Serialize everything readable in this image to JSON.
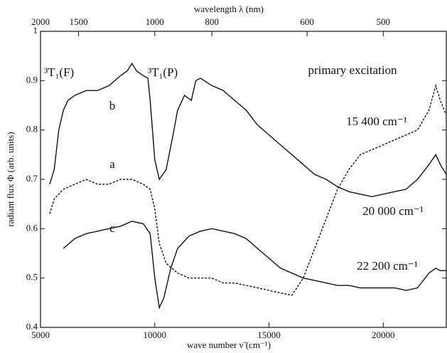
{
  "chart_data": {
    "type": "line",
    "x_label": "wave number ν̃ (cm⁻¹)",
    "y_label": "radiant flux Φ (arb. units)",
    "x2_label": "wavelength λ (nm)",
    "xlim": [
      5000,
      22760
    ],
    "ylim": [
      0.4,
      1
    ],
    "xticks": [
      5000,
      10000,
      15000,
      20000
    ],
    "yticks": [
      0.4,
      0.5,
      0.6,
      0.7,
      0.8,
      0.9,
      1
    ],
    "x2ticks": [
      2000,
      1500,
      1000,
      800,
      600,
      500
    ],
    "x2scale": "reciprocal",
    "annotations": [
      "³T₁(F)",
      "³T₁(P)",
      "primary excitation"
    ],
    "series": [
      {
        "name": "b",
        "excitation": "15 400 cm⁻¹",
        "color": "#111111",
        "style": "solid",
        "x": [
          5400,
          5600,
          5800,
          6000,
          6200,
          6500,
          7000,
          7500,
          8000,
          8500,
          8800,
          9000,
          9200,
          9500,
          9700,
          9800,
          10000,
          10200,
          10500,
          10800,
          11000,
          11300,
          11600,
          11800,
          12000,
          12500,
          13000,
          13500,
          14000,
          14500,
          15000,
          15500,
          16000,
          16500,
          17000,
          17500,
          18000,
          18500,
          19000,
          19500,
          20000,
          20500,
          21000,
          21500,
          22000,
          22300,
          22500,
          22760
        ],
        "values": [
          0.69,
          0.72,
          0.8,
          0.84,
          0.86,
          0.87,
          0.88,
          0.88,
          0.89,
          0.91,
          0.92,
          0.935,
          0.92,
          0.91,
          0.905,
          0.86,
          0.74,
          0.7,
          0.72,
          0.79,
          0.84,
          0.87,
          0.86,
          0.9,
          0.905,
          0.89,
          0.88,
          0.86,
          0.84,
          0.81,
          0.79,
          0.77,
          0.75,
          0.73,
          0.71,
          0.7,
          0.685,
          0.675,
          0.67,
          0.665,
          0.67,
          0.675,
          0.68,
          0.7,
          0.73,
          0.75,
          0.73,
          0.71
        ]
      },
      {
        "name": "a",
        "excitation": "20 000 cm⁻¹",
        "color": "#111111",
        "style": "dotted",
        "x": [
          5400,
          5600,
          5800,
          6000,
          6500,
          7000,
          7500,
          8000,
          8500,
          9000,
          9500,
          9800,
          10000,
          10200,
          10500,
          11000,
          11500,
          12000,
          12500,
          13000,
          13500,
          14000,
          14500,
          15000,
          15500,
          16000,
          16500,
          17000,
          17500,
          18000,
          18500,
          19000,
          19500,
          20000,
          20500,
          21000,
          21500,
          22000,
          22300,
          22500,
          22760
        ],
        "values": [
          0.63,
          0.66,
          0.67,
          0.68,
          0.69,
          0.7,
          0.69,
          0.69,
          0.7,
          0.7,
          0.69,
          0.68,
          0.64,
          0.57,
          0.53,
          0.51,
          0.5,
          0.5,
          0.5,
          0.49,
          0.49,
          0.485,
          0.48,
          0.475,
          0.47,
          0.465,
          0.5,
          0.56,
          0.62,
          0.68,
          0.72,
          0.75,
          0.76,
          0.77,
          0.78,
          0.79,
          0.8,
          0.84,
          0.89,
          0.86,
          0.83
        ]
      },
      {
        "name": "c",
        "excitation": "22 200 cm⁻¹",
        "color": "#111111",
        "style": "solid",
        "x": [
          6000,
          6500,
          7000,
          7500,
          8000,
          8500,
          9000,
          9500,
          9800,
          10000,
          10200,
          10400,
          10700,
          11000,
          11500,
          12000,
          12500,
          13000,
          13500,
          14000,
          14500,
          15000,
          15500,
          16000,
          16500,
          17000,
          17500,
          18000,
          18500,
          19000,
          19500,
          20000,
          20500,
          21000,
          21500,
          22000,
          22300,
          22500,
          22760
        ],
        "values": [
          0.56,
          0.58,
          0.59,
          0.595,
          0.6,
          0.605,
          0.615,
          0.61,
          0.59,
          0.5,
          0.44,
          0.46,
          0.52,
          0.56,
          0.585,
          0.595,
          0.6,
          0.595,
          0.59,
          0.58,
          0.56,
          0.54,
          0.52,
          0.51,
          0.5,
          0.495,
          0.49,
          0.485,
          0.485,
          0.48,
          0.48,
          0.48,
          0.48,
          0.475,
          0.48,
          0.51,
          0.52,
          0.515,
          0.515
        ]
      }
    ]
  }
}
